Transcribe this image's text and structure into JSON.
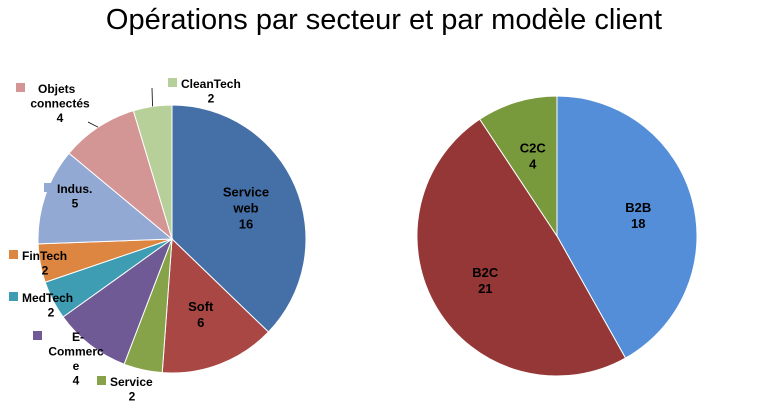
{
  "title": "Opérations par secteur et par modèle client",
  "chart_data": [
    {
      "type": "pie",
      "title": "Opérations par secteur et par modèle client",
      "slices": [
        {
          "name": "Service web",
          "label_lines": [
            "Service",
            "web"
          ],
          "value": 16,
          "color": "#4470A7"
        },
        {
          "name": "Soft",
          "label_lines": [
            "Soft"
          ],
          "value": 6,
          "color": "#A84744"
        },
        {
          "name": "Service",
          "label_lines": [
            "Service"
          ],
          "value": 2,
          "color": "#86A34A"
        },
        {
          "name": "E-Commerce",
          "label_lines": [
            "E-",
            "Commerc",
            "e"
          ],
          "value": 4,
          "color": "#6F5A96"
        },
        {
          "name": "MedTech",
          "label_lines": [
            "MedTech"
          ],
          "value": 2,
          "color": "#3E9DB3"
        },
        {
          "name": "FinTech",
          "label_lines": [
            "FinTech"
          ],
          "value": 2,
          "color": "#DD8641"
        },
        {
          "name": "Indus.",
          "label_lines": [
            "Indus."
          ],
          "value": 5,
          "color": "#92A9D3"
        },
        {
          "name": "Objets connectés",
          "label_lines": [
            "Objets",
            "connectés"
          ],
          "value": 4,
          "color": "#D49595"
        },
        {
          "name": "CleanTech",
          "label_lines": [
            "CleanTech"
          ],
          "value": 2,
          "color": "#B7D09A"
        }
      ]
    },
    {
      "type": "pie",
      "slices": [
        {
          "name": "B2B",
          "label_lines": [
            "B2B"
          ],
          "value": 18,
          "color": "#548ED8"
        },
        {
          "name": "B2C",
          "label_lines": [
            "B2C"
          ],
          "value": 21,
          "color": "#943736"
        },
        {
          "name": "C2C",
          "label_lines": [
            "C2C"
          ],
          "value": 4,
          "color": "#789A3D"
        }
      ]
    }
  ]
}
